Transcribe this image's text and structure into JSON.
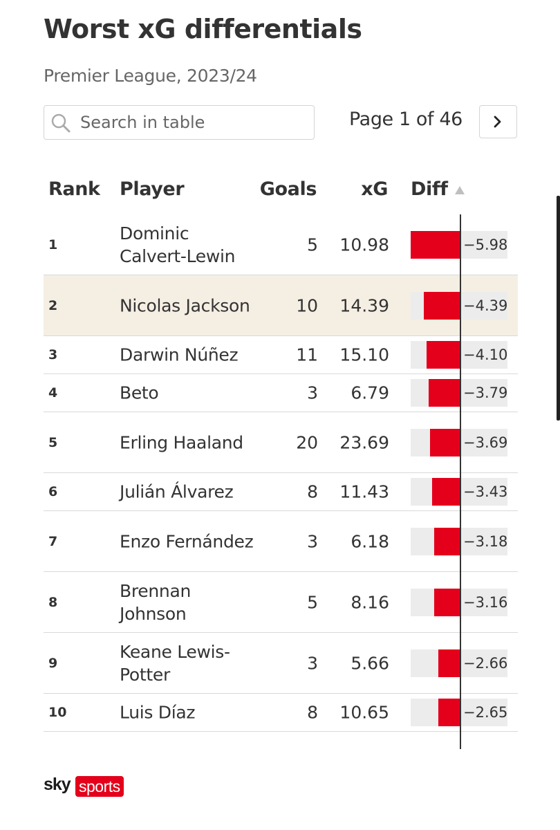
{
  "header": {
    "title": "Worst xG differentials",
    "subtitle": "Premier League, 2023/24"
  },
  "search": {
    "placeholder": "Search in table",
    "value": "",
    "icon": "search-icon"
  },
  "pagination": {
    "label": "Page 1 of 46",
    "current_page": 1,
    "total_pages": 46,
    "next_icon": "chevron-right-icon"
  },
  "table": {
    "columns": [
      "Rank",
      "Player",
      "Goals",
      "xG",
      "Diff"
    ],
    "sort_icon": "sort-ascending-icon",
    "highlight_color": "#f5eee3"
  },
  "colors": {
    "bar": "#e4001b",
    "track": "#ececec",
    "brand": "#e4001b"
  },
  "chart_data": {
    "type": "table",
    "columns": [
      "Rank",
      "Player",
      "Goals",
      "xG",
      "Diff"
    ],
    "diff_range": [
      -5.98,
      0
    ],
    "rows": [
      {
        "rank": "1",
        "player": "Dominic Calvert-Lewin",
        "goals": "5",
        "xg": "10.98",
        "diff_label": "−5.98",
        "diff": -5.98,
        "highlight": false
      },
      {
        "rank": "2",
        "player": "Nicolas Jackson",
        "goals": "10",
        "xg": "14.39",
        "diff_label": "−4.39",
        "diff": -4.39,
        "highlight": true
      },
      {
        "rank": "3",
        "player": "Darwin Núñez",
        "goals": "11",
        "xg": "15.10",
        "diff_label": "−4.10",
        "diff": -4.1,
        "highlight": false
      },
      {
        "rank": "4",
        "player": "Beto",
        "goals": "3",
        "xg": "6.79",
        "diff_label": "−3.79",
        "diff": -3.79,
        "highlight": false
      },
      {
        "rank": "5",
        "player": "Erling Haaland",
        "goals": "20",
        "xg": "23.69",
        "diff_label": "−3.69",
        "diff": -3.69,
        "highlight": false
      },
      {
        "rank": "6",
        "player": "Julián Álvarez",
        "goals": "8",
        "xg": "11.43",
        "diff_label": "−3.43",
        "diff": -3.43,
        "highlight": false
      },
      {
        "rank": "7",
        "player": "Enzo Fernández",
        "goals": "3",
        "xg": "6.18",
        "diff_label": "−3.18",
        "diff": -3.18,
        "highlight": false
      },
      {
        "rank": "8",
        "player": "Brennan Johnson",
        "goals": "5",
        "xg": "8.16",
        "diff_label": "−3.16",
        "diff": -3.16,
        "highlight": false
      },
      {
        "rank": "9",
        "player": "Keane Lewis-Potter",
        "goals": "3",
        "xg": "5.66",
        "diff_label": "−2.66",
        "diff": -2.66,
        "highlight": false
      },
      {
        "rank": "10",
        "player": "Luis Díaz",
        "goals": "8",
        "xg": "10.65",
        "diff_label": "−2.65",
        "diff": -2.65,
        "highlight": false
      }
    ]
  },
  "footer": {
    "logo_sky": "sky",
    "logo_sports": "sports"
  }
}
